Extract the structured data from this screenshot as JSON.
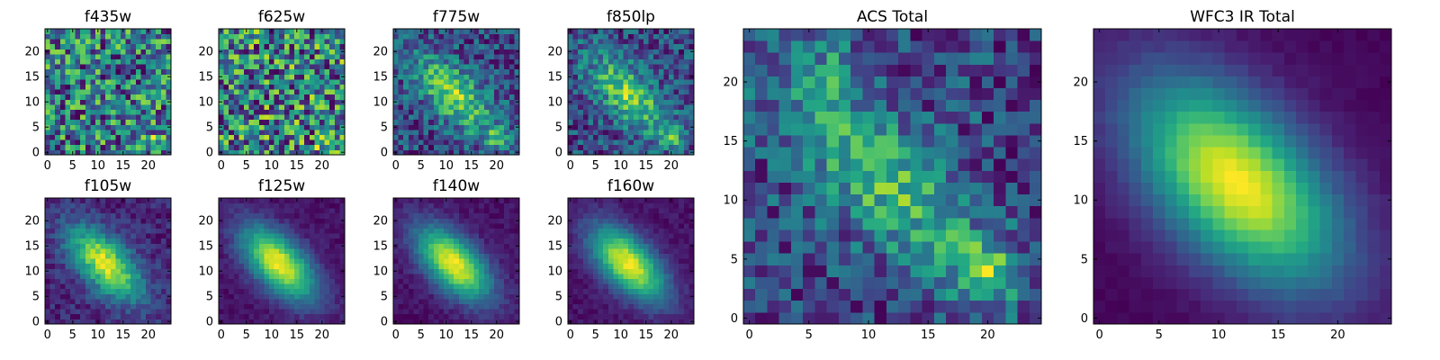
{
  "chart_data": {
    "type": "heatmap",
    "colormap": "viridis",
    "grid_size": 25,
    "panels": [
      {
        "title": "f435w",
        "kind": "noise",
        "seed": 11,
        "xticks": [
          0,
          5,
          10,
          15,
          20
        ],
        "yticks": [
          0,
          5,
          10,
          15,
          20
        ],
        "xlim": [
          -0.5,
          24.5
        ],
        "ylim": [
          -0.5,
          24.5
        ]
      },
      {
        "title": "f625w",
        "kind": "noise",
        "seed": 23,
        "xticks": [
          0,
          5,
          10,
          15,
          20
        ],
        "yticks": [
          0,
          5,
          10,
          15,
          20
        ],
        "xlim": [
          -0.5,
          24.5
        ],
        "ylim": [
          -0.5,
          24.5
        ]
      },
      {
        "title": "f775w",
        "kind": "weak",
        "seed": 37,
        "xticks": [
          0,
          5,
          10,
          15,
          20
        ],
        "yticks": [
          0,
          5,
          10,
          15,
          20
        ],
        "xlim": [
          -0.5,
          24.5
        ],
        "ylim": [
          -0.5,
          24.5
        ]
      },
      {
        "title": "f850lp",
        "kind": "weak",
        "seed": 41,
        "xticks": [
          0,
          5,
          10,
          15,
          20
        ],
        "yticks": [
          0,
          5,
          10,
          15,
          20
        ],
        "xlim": [
          -0.5,
          24.5
        ],
        "ylim": [
          -0.5,
          24.5
        ]
      },
      {
        "title": "ACS Total",
        "kind": "acs",
        "seed": 53,
        "xticks": [
          0,
          5,
          10,
          15,
          20
        ],
        "yticks": [
          0,
          5,
          10,
          15,
          20
        ],
        "xlim": [
          -0.5,
          24.5
        ],
        "ylim": [
          -0.5,
          24.5
        ]
      },
      {
        "title": "WFC3 IR Total",
        "kind": "smooth",
        "seed": 67,
        "xticks": [
          0,
          5,
          10,
          15,
          20
        ],
        "yticks": [
          0,
          5,
          10,
          15,
          20
        ],
        "xlim": [
          -0.5,
          24.5
        ],
        "ylim": [
          -0.5,
          24.5
        ]
      },
      {
        "title": "f105w",
        "kind": "ir_noisy",
        "seed": 71,
        "xticks": [
          0,
          5,
          10,
          15,
          20
        ],
        "yticks": [
          0,
          5,
          10,
          15,
          20
        ],
        "xlim": [
          -0.5,
          24.5
        ],
        "ylim": [
          -0.5,
          24.5
        ]
      },
      {
        "title": "f125w",
        "kind": "ir",
        "seed": 83,
        "xticks": [
          0,
          5,
          10,
          15,
          20
        ],
        "yticks": [
          0,
          5,
          10,
          15,
          20
        ],
        "xlim": [
          -0.5,
          24.5
        ],
        "ylim": [
          -0.5,
          24.5
        ]
      },
      {
        "title": "f140w",
        "kind": "ir",
        "seed": 97,
        "xticks": [
          0,
          5,
          10,
          15,
          20
        ],
        "yticks": [
          0,
          5,
          10,
          15,
          20
        ],
        "xlim": [
          -0.5,
          24.5
        ],
        "ylim": [
          -0.5,
          24.5
        ]
      },
      {
        "title": "f160w",
        "kind": "ir",
        "seed": 101,
        "xticks": [
          0,
          5,
          10,
          15,
          20
        ],
        "yticks": [
          0,
          5,
          10,
          15,
          20
        ],
        "xlim": [
          -0.5,
          24.5
        ],
        "ylim": [
          -0.5,
          24.5
        ]
      }
    ],
    "source_peak": {
      "x": 11.5,
      "y": 11.5
    }
  }
}
